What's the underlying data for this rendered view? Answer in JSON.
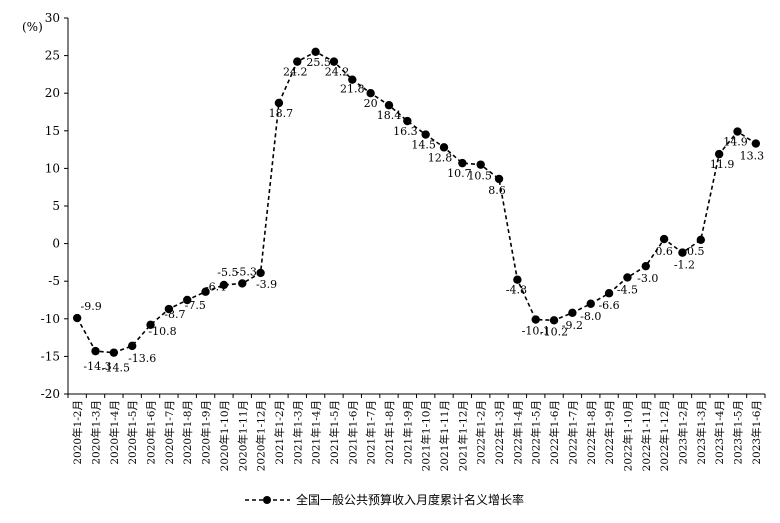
{
  "chart_data": {
    "type": "line",
    "ylabel": "(%)",
    "ylim": [
      -20,
      30
    ],
    "yticks": [
      -20,
      -15,
      -10,
      -5,
      0,
      5,
      10,
      15,
      20,
      25,
      30
    ],
    "grid": false,
    "legend_position": "bottom-center",
    "categories": [
      "2020年1-2月",
      "2020年1-3月",
      "2020年1-4月",
      "2020年1-5月",
      "2020年1-6月",
      "2020年1-7月",
      "2020年1-8月",
      "2020年1-9月",
      "2020年1-10月",
      "2020年1-11月",
      "2020年1-12月",
      "2021年1-2月",
      "2021年1-3月",
      "2021年1-4月",
      "2021年1-5月",
      "2021年1-6月",
      "2021年1-7月",
      "2021年1-8月",
      "2021年1-9月",
      "2021年1-10月",
      "2021年1-11月",
      "2021年1-12月",
      "2022年1-2月",
      "2022年1-3月",
      "2022年1-4月",
      "2022年1-5月",
      "2022年1-6月",
      "2022年1-7月",
      "2022年1-8月",
      "2022年1-9月",
      "2022年1-10月",
      "2022年1-11月",
      "2022年1-12月",
      "2023年1-2月",
      "2023年1-3月",
      "2023年1-4月",
      "2023年1-5月",
      "2023年1-6月"
    ],
    "series": [
      {
        "name": "全国一般公共预算收入月度累计名义增长率",
        "values": [
          -9.9,
          -14.3,
          -14.5,
          -13.6,
          -10.8,
          -8.7,
          -7.5,
          -6.4,
          -5.5,
          -5.3,
          -3.9,
          18.7,
          24.2,
          25.5,
          24.2,
          21.8,
          20,
          18.4,
          16.3,
          14.5,
          12.8,
          10.7,
          10.5,
          8.6,
          -4.8,
          -10.1,
          -10.2,
          -9.2,
          -8.0,
          -6.6,
          -4.5,
          -3.0,
          0.6,
          -1.2,
          0.5,
          11.9,
          14.9,
          13.3
        ],
        "labels": [
          "-9.9",
          "-14.3",
          "-14.5",
          "-13.6",
          "-10.8",
          "-8.7",
          "-7.5",
          "-6.4",
          "-5.5",
          "-5.3",
          "-3.9",
          "18.7",
          "24.2",
          "25.5",
          "24.2",
          "21.8",
          "20",
          "18.4",
          "16.3",
          "14.5",
          "12.8",
          "10.7",
          "10.5",
          "8.6",
          "-4.8",
          "-10.1",
          "-10.2",
          "-9.2",
          "-8.0",
          "-6.6",
          "-4.5",
          "-3.0",
          "0.6",
          "-1.2",
          "0.5",
          "11.9",
          "14.9",
          "13.3"
        ],
        "color": "#000000"
      }
    ]
  }
}
